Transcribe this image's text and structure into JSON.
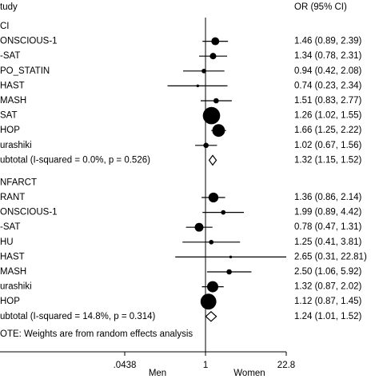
{
  "chart_data": {
    "type": "forest",
    "study_header": "tudy",
    "effect_header": "OR (95% CI)",
    "xscale": "log",
    "xlim": [
      0.0438,
      22.8
    ],
    "xticks": [
      {
        "value": 0.0438,
        "label": ".0438"
      },
      1,
      22.8
    ],
    "xlabel_left": "Men",
    "xlabel_right": "Women",
    "reference": 1,
    "marker_color": "#000000",
    "note": "OTE: Weights are from random effects analysis",
    "groups": [
      {
        "name": "CI",
        "studies": [
          {
            "name": "ONSCIOUS-1",
            "or": 1.46,
            "ci": [
              0.89,
              2.39
            ],
            "weight": 9,
            "value_label": "1.46 (0.89, 2.39)"
          },
          {
            "name": "-SAT",
            "or": 1.34,
            "ci": [
              0.78,
              2.31
            ],
            "weight": 6,
            "value_label": "1.34 (0.78, 2.31)"
          },
          {
            "name": "PO_STATIN",
            "or": 0.94,
            "ci": [
              0.42,
              2.08
            ],
            "weight": 3,
            "value_label": "0.94 (0.42, 2.08)"
          },
          {
            "name": "HAST",
            "or": 0.74,
            "ci": [
              0.23,
              2.34
            ],
            "weight": 1,
            "value_label": "0.74 (0.23, 2.34)"
          },
          {
            "name": "MASH",
            "or": 1.51,
            "ci": [
              0.83,
              2.77
            ],
            "weight": 4,
            "value_label": "1.51 (0.83, 2.77)"
          },
          {
            "name": "SAT",
            "or": 1.26,
            "ci": [
              1.02,
              1.55
            ],
            "weight": 43,
            "value_label": "1.26 (1.02, 1.55)"
          },
          {
            "name": "HOP",
            "or": 1.66,
            "ci": [
              1.25,
              2.22
            ],
            "weight": 23,
            "value_label": "1.66 (1.25, 2.22)"
          },
          {
            "name": "urashiki",
            "or": 1.02,
            "ci": [
              0.67,
              1.56
            ],
            "weight": 4,
            "value_label": "1.02 (0.67, 1.56)"
          }
        ],
        "subtotal": {
          "name": "ubtotal  (I-squared = 0.0%, p = 0.526)",
          "or": 1.32,
          "ci": [
            1.15,
            1.52
          ],
          "value_label": "1.32 (1.15, 1.52)"
        }
      },
      {
        "name": "NFARCT",
        "studies": [
          {
            "name": "RANT",
            "or": 1.36,
            "ci": [
              0.86,
              2.14
            ],
            "weight": 14,
            "value_label": "1.36 (0.86, 2.14)"
          },
          {
            "name": "ONSCIOUS-1",
            "or": 1.99,
            "ci": [
              0.89,
              4.42
            ],
            "weight": 3,
            "value_label": "1.99 (0.89, 4.42)"
          },
          {
            "name": "-SAT",
            "or": 0.78,
            "ci": [
              0.47,
              1.31
            ],
            "weight": 11,
            "value_label": "0.78 (0.47, 1.31)"
          },
          {
            "name": "HU",
            "or": 1.25,
            "ci": [
              0.41,
              3.81
            ],
            "weight": 3,
            "value_label": "1.25 (0.41, 3.81)"
          },
          {
            "name": "HAST",
            "or": 2.65,
            "ci": [
              0.31,
              22.81
            ],
            "weight": 1,
            "value_label": "2.65 (0.31, 22.81)"
          },
          {
            "name": "MASH",
            "or": 2.5,
            "ci": [
              1.06,
              5.92
            ],
            "weight": 4,
            "value_label": "2.50 (1.06, 5.92)"
          },
          {
            "name": "urashiki",
            "or": 1.32,
            "ci": [
              0.87,
              2.02
            ],
            "weight": 18,
            "value_label": "1.32 (0.87, 2.02)"
          },
          {
            "name": "HOP",
            "or": 1.12,
            "ci": [
              0.87,
              1.45
            ],
            "weight": 36,
            "value_label": "1.12 (0.87, 1.45)"
          }
        ],
        "subtotal": {
          "name": "ubtotal  (I-squared = 14.8%, p = 0.314)",
          "or": 1.24,
          "ci": [
            1.01,
            1.52
          ],
          "value_label": "1.24 (1.01, 1.52)"
        }
      }
    ]
  }
}
